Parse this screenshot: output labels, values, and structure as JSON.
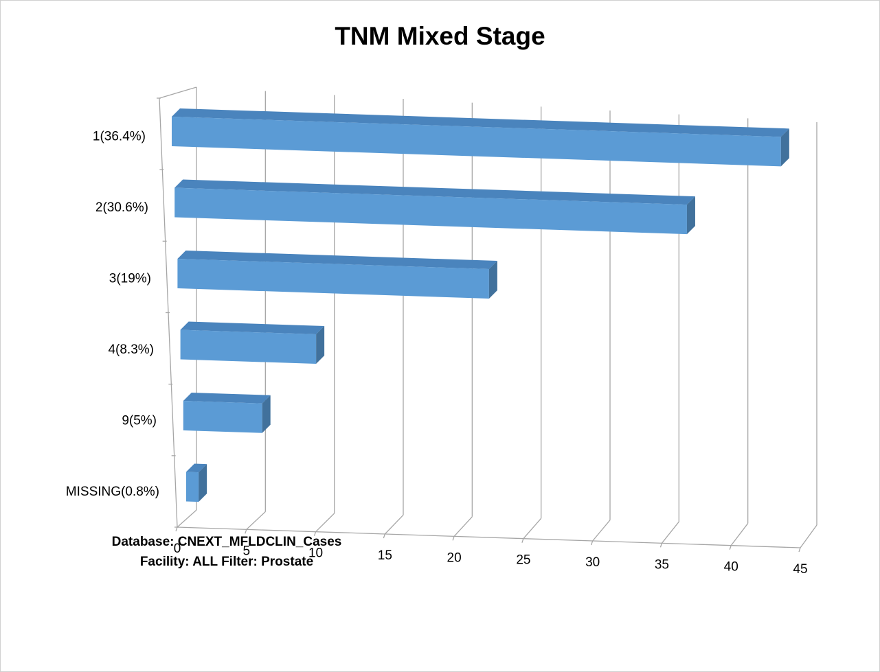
{
  "chart_data": {
    "type": "bar",
    "orientation": "horizontal",
    "style": "3d",
    "title": "TNM Mixed Stage",
    "categories": [
      "1(36.4%)",
      "2(30.6%)",
      "3(19%)",
      "4(8.3%)",
      "9(5%)",
      "MISSING(0.8%)"
    ],
    "values": [
      44,
      37,
      22.5,
      9.8,
      5.7,
      0.9
    ],
    "xlim": [
      0,
      45
    ],
    "xticks": [
      "0",
      "5",
      "10",
      "15",
      "20",
      "25",
      "30",
      "35",
      "40",
      "45"
    ],
    "grid": true,
    "bar_color": "#5b9bd5",
    "bar_side_color": "#41719c",
    "bar_top_color": "#4a84bd"
  },
  "footer": {
    "line1": "Database: CNEXT_MFLDCLIN_Cases",
    "line2": "Facility: ALL Filter: Prostate"
  }
}
